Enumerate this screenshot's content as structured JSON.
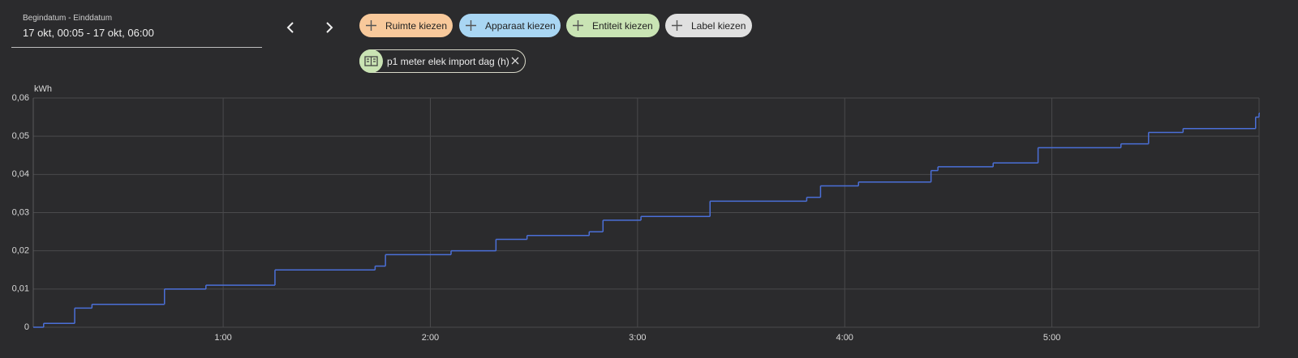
{
  "toolbar": {
    "date_label": "Begindatum - Einddatum",
    "date_range": "17 okt, 00:05 - 17 okt, 06:00",
    "chips": [
      "Ruimte kiezen",
      "Apparaat kiezen",
      "Entiteit kiezen",
      "Label kiezen"
    ],
    "selected": "p1 meter elek import dag (h)"
  },
  "chart_data": {
    "type": "step",
    "y_label": "kWh",
    "series": [
      {
        "name": "p1 meter elek import dag (h)",
        "color": "#4b6fd8",
        "x": [
          5,
          8,
          17,
          22,
          43,
          55,
          75,
          104,
          107,
          126,
          139,
          148,
          166,
          170,
          181,
          201,
          229,
          233,
          244,
          265,
          267,
          283,
          296,
          320,
          328,
          338,
          359,
          360
        ],
        "values": [
          0,
          0.001,
          0.005,
          0.006,
          0.01,
          0.011,
          0.015,
          0.016,
          0.019,
          0.02,
          0.023,
          0.024,
          0.025,
          0.028,
          0.029,
          0.033,
          0.034,
          0.037,
          0.038,
          0.041,
          0.042,
          0.043,
          0.047,
          0.048,
          0.051,
          0.052,
          0.055,
          0.056
        ]
      }
    ],
    "xlim": [
      5,
      360
    ],
    "xticks": [
      {
        "value": 60,
        "label": "1:00"
      },
      {
        "value": 120,
        "label": "2:00"
      },
      {
        "value": 180,
        "label": "3:00"
      },
      {
        "value": 240,
        "label": "4:00"
      },
      {
        "value": 300,
        "label": "5:00"
      }
    ],
    "ylim": [
      0,
      0.06
    ],
    "yticks": [
      0,
      {
        "value": 0.01,
        "label": "0,01"
      },
      {
        "value": 0.02,
        "label": "0,02"
      },
      {
        "value": 0.03,
        "label": "0,03"
      },
      {
        "value": 0.04,
        "label": "0,04"
      },
      {
        "value": 0.05,
        "label": "0,05"
      },
      {
        "value": 0.06,
        "label": "0,06"
      }
    ],
    "grid": true
  }
}
